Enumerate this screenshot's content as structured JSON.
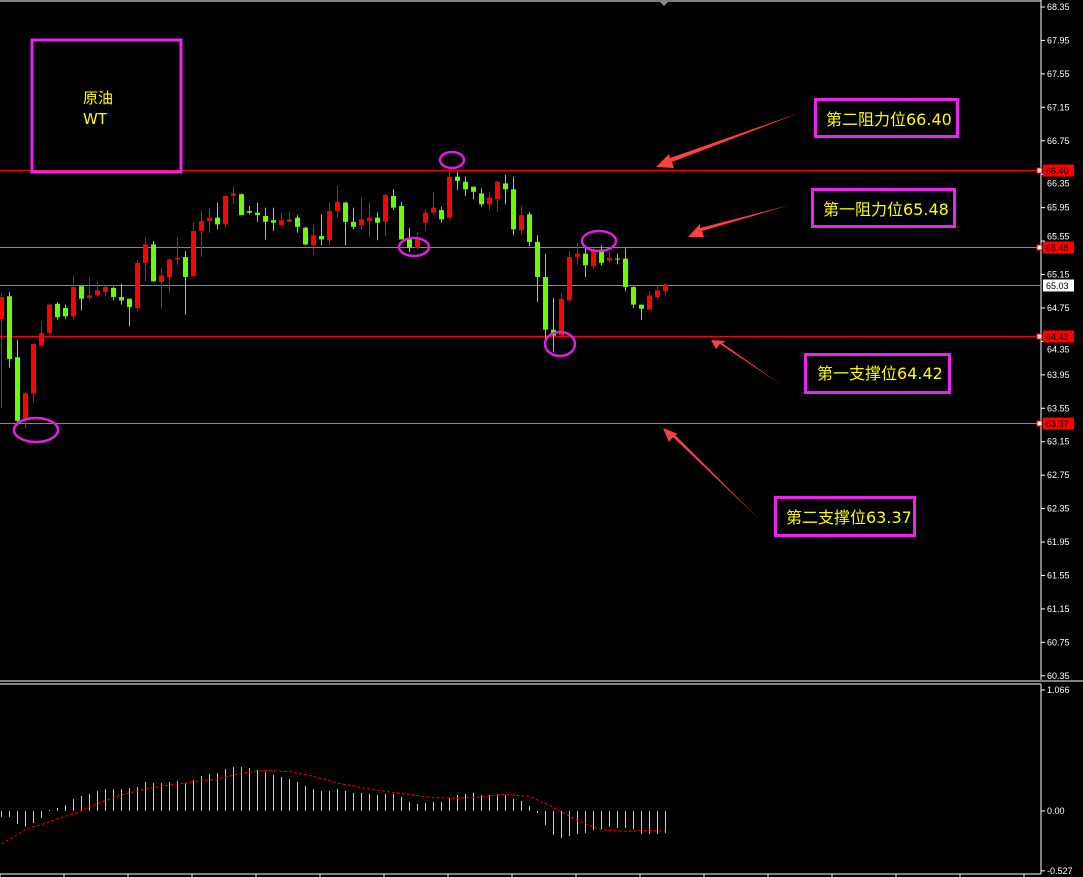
{
  "chart_data": {
    "type": "candlestick",
    "title_box": {
      "line1": "原油",
      "line2": "WT"
    },
    "colors": {
      "up": "#ff0000",
      "down": "#66ff00",
      "background": "#000000",
      "annotation_border": "#ee22ee",
      "annotation_text": "#ffff00",
      "arrow": "#ff4040",
      "circle": "#dd22dd"
    },
    "price_axis": {
      "min": 60.35,
      "max": 68.35,
      "step": 0.4,
      "ticks": [
        "68.35",
        "67.95",
        "67.55",
        "67.15",
        "66.75",
        "66.35",
        "65.95",
        "65.55",
        "65.15",
        "64.75",
        "64.35",
        "63.95",
        "63.55",
        "63.15",
        "62.75",
        "62.35",
        "61.95",
        "61.55",
        "61.15",
        "60.75",
        "60.35"
      ]
    },
    "levels": [
      {
        "price": 66.4,
        "label": "66.40",
        "line_color": "#ff0000",
        "tag_color": "#ff0000"
      },
      {
        "price": 65.48,
        "label": "65.48",
        "line_color": "#888888",
        "tag_color": "#ff0000"
      },
      {
        "price": 65.03,
        "label": "65.03",
        "line_color": "#888888",
        "tag_color": "#ffffff",
        "current": true
      },
      {
        "price": 64.42,
        "label": "64.42",
        "line_color": "#ff0000",
        "tag_color": "#ff0000"
      },
      {
        "price": 63.37,
        "label": "63.37",
        "line_color": "#888888",
        "tag_color": "#ff0000"
      }
    ],
    "annotations": [
      {
        "text": "第二阻力位66.40",
        "price": 66.4
      },
      {
        "text": "第一阻力位65.48",
        "price": 65.48
      },
      {
        "text": "第一支撑位64.42",
        "price": 64.42
      },
      {
        "text": "第二支撑位63.37",
        "price": 63.37
      }
    ],
    "ohlc": [
      [
        64.62,
        64.93,
        63.55,
        64.88
      ],
      [
        64.89,
        64.94,
        64.04,
        64.14
      ],
      [
        64.16,
        64.37,
        63.34,
        63.4
      ],
      [
        63.42,
        63.75,
        63.31,
        63.73
      ],
      [
        63.73,
        64.32,
        63.62,
        64.32
      ],
      [
        64.3,
        64.59,
        64.29,
        64.45
      ],
      [
        64.45,
        64.8,
        64.43,
        64.79
      ],
      [
        64.8,
        64.82,
        64.61,
        64.64
      ],
      [
        64.75,
        64.79,
        64.62,
        64.65
      ],
      [
        64.65,
        65.14,
        64.62,
        65.0
      ],
      [
        65.01,
        65.01,
        64.72,
        64.86
      ],
      [
        64.87,
        65.12,
        64.84,
        64.9
      ],
      [
        64.9,
        65.06,
        64.89,
        64.96
      ],
      [
        64.94,
        65.02,
        64.89,
        65.0
      ],
      [
        64.99,
        65.0,
        64.84,
        64.88
      ],
      [
        64.88,
        65.04,
        64.79,
        64.84
      ],
      [
        64.86,
        64.86,
        64.53,
        64.76
      ],
      [
        64.75,
        65.32,
        64.72,
        65.29
      ],
      [
        65.29,
        65.6,
        65.07,
        65.51
      ],
      [
        65.51,
        65.55,
        65.06,
        65.07
      ],
      [
        65.06,
        65.23,
        64.74,
        65.14
      ],
      [
        65.12,
        65.34,
        64.93,
        65.33
      ],
      [
        65.33,
        65.6,
        65.26,
        65.35
      ],
      [
        65.36,
        65.43,
        64.67,
        65.12
      ],
      [
        65.13,
        65.78,
        65.13,
        65.67
      ],
      [
        65.67,
        65.92,
        65.36,
        65.79
      ],
      [
        65.79,
        65.95,
        65.65,
        65.83
      ],
      [
        65.83,
        66.01,
        65.69,
        65.75
      ],
      [
        65.75,
        66.1,
        65.71,
        66.09
      ],
      [
        66.09,
        66.2,
        65.99,
        66.12
      ],
      [
        66.11,
        66.12,
        65.86,
        65.86
      ],
      [
        65.91,
        65.97,
        65.87,
        65.89
      ],
      [
        65.89,
        66.01,
        65.78,
        65.86
      ],
      [
        65.85,
        65.95,
        65.57,
        65.78
      ],
      [
        65.8,
        65.95,
        65.67,
        65.77
      ],
      [
        65.74,
        65.89,
        65.73,
        65.8
      ],
      [
        65.78,
        65.9,
        65.78,
        65.81
      ],
      [
        65.83,
        65.86,
        65.65,
        65.72
      ],
      [
        65.71,
        65.72,
        65.5,
        65.51
      ],
      [
        65.5,
        65.74,
        65.39,
        65.62
      ],
      [
        65.61,
        65.87,
        65.5,
        65.57
      ],
      [
        65.56,
        66.01,
        65.5,
        65.91
      ],
      [
        65.91,
        66.21,
        65.83,
        66.02
      ],
      [
        66.01,
        66.02,
        65.5,
        65.78
      ],
      [
        65.78,
        65.95,
        65.69,
        65.72
      ],
      [
        65.74,
        66.07,
        65.68,
        65.81
      ],
      [
        65.79,
        66.01,
        65.6,
        65.83
      ],
      [
        65.83,
        65.89,
        65.56,
        65.77
      ],
      [
        65.78,
        66.12,
        65.61,
        66.1
      ],
      [
        66.09,
        66.17,
        65.92,
        65.95
      ],
      [
        65.97,
        66.02,
        65.57,
        65.57
      ],
      [
        65.57,
        65.71,
        65.42,
        65.47
      ],
      [
        65.47,
        65.65,
        65.45,
        65.57
      ],
      [
        65.77,
        65.93,
        65.68,
        65.89
      ],
      [
        65.89,
        66.14,
        65.86,
        65.95
      ],
      [
        65.92,
        65.96,
        65.77,
        65.81
      ],
      [
        65.83,
        66.4,
        65.8,
        66.32
      ],
      [
        66.32,
        66.38,
        66.16,
        66.27
      ],
      [
        66.26,
        66.32,
        66.09,
        66.17
      ],
      [
        66.2,
        66.2,
        66.05,
        66.14
      ],
      [
        66.12,
        66.18,
        65.96,
        65.99
      ],
      [
        65.99,
        66.14,
        65.92,
        66.07
      ],
      [
        66.05,
        66.27,
        65.9,
        66.26
      ],
      [
        66.24,
        66.34,
        65.99,
        66.17
      ],
      [
        66.17,
        66.32,
        65.62,
        65.69
      ],
      [
        65.68,
        65.97,
        65.63,
        65.86
      ],
      [
        65.87,
        65.9,
        65.49,
        65.54
      ],
      [
        65.54,
        65.62,
        64.82,
        65.12
      ],
      [
        65.12,
        65.4,
        64.37,
        64.49
      ],
      [
        64.49,
        64.87,
        64.23,
        64.42
      ],
      [
        64.42,
        64.93,
        64.42,
        64.86
      ],
      [
        64.84,
        65.43,
        64.84,
        65.36
      ],
      [
        65.36,
        65.53,
        65.27,
        65.4
      ],
      [
        65.4,
        65.47,
        65.12,
        65.26
      ],
      [
        65.25,
        65.47,
        65.22,
        65.45
      ],
      [
        65.45,
        65.5,
        65.26,
        65.29
      ],
      [
        65.32,
        65.43,
        65.3,
        65.35
      ],
      [
        65.34,
        65.4,
        65.27,
        65.33
      ],
      [
        65.34,
        65.46,
        64.95,
        65.0
      ],
      [
        65.0,
        65.01,
        64.75,
        64.79
      ],
      [
        64.79,
        64.79,
        64.61,
        64.74
      ],
      [
        64.73,
        64.95,
        64.72,
        64.9
      ],
      [
        64.88,
        65.02,
        64.85,
        64.96
      ],
      [
        64.95,
        65.05,
        64.9,
        65.03
      ]
    ],
    "highlighted_candles": [
      2,
      51,
      56,
      69,
      74
    ],
    "macd": {
      "axis_ticks": [
        "1.066",
        "0.00",
        "-0.527"
      ],
      "max": 1.066,
      "min": -0.527,
      "histogram": [
        -0.053,
        -0.053,
        -0.115,
        -0.138,
        -0.106,
        -0.062,
        0.01,
        0.026,
        0.053,
        0.106,
        0.132,
        0.15,
        0.176,
        0.194,
        0.194,
        0.194,
        0.203,
        0.211,
        0.255,
        0.247,
        0.247,
        0.255,
        0.264,
        0.247,
        0.273,
        0.308,
        0.326,
        0.335,
        0.37,
        0.388,
        0.388,
        0.379,
        0.361,
        0.344,
        0.317,
        0.299,
        0.282,
        0.255,
        0.22,
        0.194,
        0.176,
        0.176,
        0.194,
        0.176,
        0.159,
        0.159,
        0.15,
        0.141,
        0.15,
        0.15,
        0.124,
        0.079,
        0.062,
        0.07,
        0.079,
        0.079,
        0.115,
        0.141,
        0.15,
        0.159,
        0.141,
        0.141,
        0.15,
        0.141,
        0.106,
        0.088,
        0.044,
        -0.018,
        -0.124,
        -0.212,
        -0.238,
        -0.22,
        -0.203,
        -0.194,
        -0.168,
        -0.159,
        -0.141,
        -0.15,
        -0.15,
        -0.159,
        -0.203,
        -0.203,
        -0.203,
        -0.194
      ],
      "signal": [
        -0.29,
        -0.25,
        -0.21,
        -0.165,
        -0.14,
        -0.12,
        -0.094,
        -0.07,
        -0.047,
        -0.024,
        0.007,
        0.037,
        0.068,
        0.092,
        0.117,
        0.141,
        0.159,
        0.176,
        0.194,
        0.206,
        0.217,
        0.229,
        0.238,
        0.246,
        0.255,
        0.264,
        0.273,
        0.282,
        0.299,
        0.316,
        0.332,
        0.341,
        0.35,
        0.358,
        0.354,
        0.351,
        0.347,
        0.333,
        0.319,
        0.305,
        0.286,
        0.266,
        0.247,
        0.233,
        0.219,
        0.205,
        0.194,
        0.184,
        0.173,
        0.164,
        0.156,
        0.147,
        0.137,
        0.127,
        0.117,
        0.115,
        0.114,
        0.112,
        0.116,
        0.119,
        0.123,
        0.131,
        0.139,
        0.147,
        0.141,
        0.135,
        0.129,
        0.097,
        0.064,
        0.032,
        -0.007,
        -0.046,
        -0.085,
        -0.112,
        -0.14,
        -0.167,
        -0.171,
        -0.175,
        -0.179,
        -0.176,
        -0.173,
        -0.17,
        -0.175,
        -0.179
      ]
    }
  }
}
